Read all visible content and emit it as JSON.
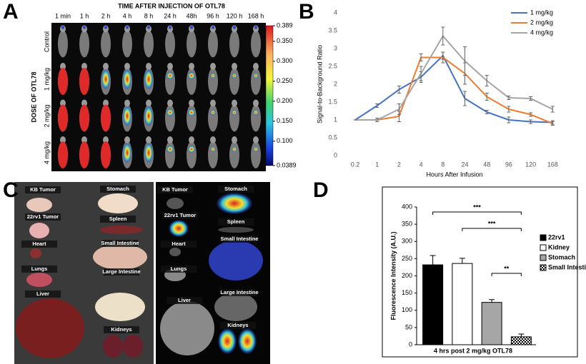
{
  "panel_labels": [
    "A",
    "B",
    "C",
    "D"
  ],
  "panel_a": {
    "title": "TIME AFTER INJECTION OF OTL78",
    "columns": [
      "1 min",
      "1 h",
      "2 h",
      "4 h",
      "8 h",
      "24 h",
      "48h",
      "96 h",
      "120 h",
      "168 h"
    ],
    "rows": [
      "Control",
      "1 mg/kg",
      "2 mg/kg",
      "4 mg/kg"
    ],
    "side_label": "DOSE OF OTL78",
    "colorbar_lim": [
      0.0389,
      0.389
    ],
    "colorbar_ticks": [
      0.389,
      {
        "value": 0.35,
        "label": "0.350"
      },
      {
        "value": 0.3,
        "label": "0.300"
      },
      {
        "value": 0.25,
        "label": "0.250"
      },
      {
        "value": 0.2,
        "label": "0.200"
      },
      {
        "value": 0.15,
        "label": "0.150"
      },
      {
        "value": 0.1,
        "label": "0.100"
      },
      0.0389
    ]
  },
  "panel_c": {
    "left_labels": [
      "KB Tumor",
      "Stomach",
      "22rv1 Tumor",
      "Spleen",
      "Heart",
      "Small Intestine",
      "Lungs",
      "Large Intestine",
      "Liver",
      "Kidneys"
    ],
    "right_labels": [
      "KB Tumor",
      "Stomach",
      "22rv1 Tumor",
      "Spleen",
      "Small Intestine",
      "Heart",
      "Lungs",
      "Large Intestine",
      "Liver",
      "Kidneys"
    ]
  },
  "chart_data": [
    {
      "type": "line",
      "x_label": "Hours After Infusion",
      "y_label": "Signal-to-Background Ratio",
      "categories": [
        "0.2",
        "1",
        "2",
        "4",
        "8",
        "24",
        "48",
        "96",
        "120",
        "168"
      ],
      "ylim": [
        0,
        4
      ],
      "yticks": [
        0,
        0.5,
        1,
        1.5,
        2,
        2.5,
        3,
        3.5,
        4
      ],
      "grid": false,
      "legend": "top-right",
      "series": [
        {
          "name": "1 mg/kg",
          "color": "#4472c4",
          "values": [
            1,
            1.4,
            1.85,
            2.2,
            2.8,
            1.6,
            1.22,
            1.0,
            0.95,
            0.93
          ],
          "errors": [
            0,
            0.05,
            0.1,
            0.15,
            0.1,
            0.2,
            0.05,
            0.08,
            0.05,
            0.05
          ]
        },
        {
          "name": "2 mg/kg",
          "color": "#ed7d31",
          "values": [
            1,
            1.0,
            1.1,
            2.75,
            2.75,
            2.3,
            1.65,
            1.3,
            1.15,
            0.9
          ],
          "errors": [
            0,
            0.05,
            0.15,
            0.1,
            0.15,
            0.3,
            0.1,
            0.08,
            0.05,
            0.05
          ]
        },
        {
          "name": "4 mg/kg",
          "color": "#a5a5a5",
          "values": [
            1,
            1.0,
            1.3,
            2.3,
            3.35,
            2.65,
            2.1,
            1.62,
            1.6,
            1.3
          ],
          "errors": [
            0,
            0,
            0.15,
            0.2,
            0.25,
            0.4,
            0.15,
            0.05,
            0.05,
            0.08
          ]
        }
      ]
    },
    {
      "type": "bar",
      "x_label": "4 hrs post 2 mg/kg OTL78",
      "y_label": "Fluorescence Intensity (A.U.)",
      "categories": [
        "22rv1",
        "Kidney",
        "Stomach",
        "Small Intestine"
      ],
      "values": [
        232,
        236,
        123,
        23
      ],
      "errors": [
        27,
        15,
        8,
        8
      ],
      "fills": [
        "#000000",
        "#ffffff",
        "#a6a6a6",
        "checker"
      ],
      "ylim": [
        0,
        400
      ],
      "yticks": [
        0,
        50,
        100,
        150,
        200,
        250,
        300,
        350,
        400
      ],
      "grid": false,
      "legend": "right",
      "annotations": [
        "***",
        "***",
        "**"
      ]
    }
  ]
}
